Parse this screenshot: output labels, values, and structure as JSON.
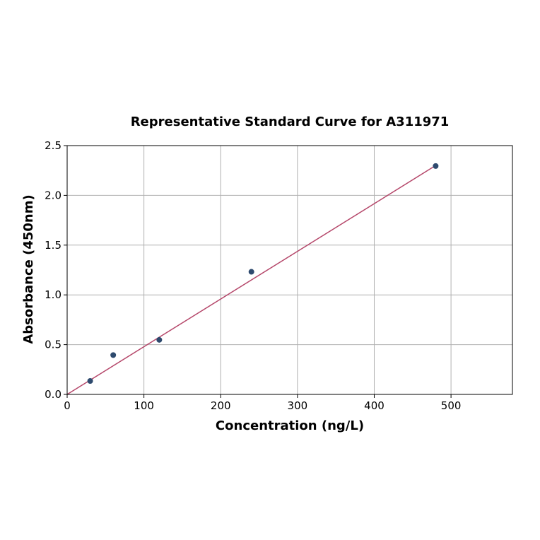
{
  "chart_data": {
    "type": "scatter",
    "title": "Representative Standard Curve for A311971",
    "xlabel": "Concentration (ng/L)",
    "ylabel": "Absorbance (450nm)",
    "xlim": [
      0,
      580
    ],
    "ylim": [
      0,
      2.5
    ],
    "xticks": [
      0,
      100,
      200,
      300,
      400,
      500
    ],
    "yticks": [
      0.0,
      0.5,
      1.0,
      1.5,
      2.0,
      2.5
    ],
    "xtick_labels": [
      "0",
      "100",
      "200",
      "300",
      "400",
      "500"
    ],
    "ytick_labels": [
      "0.0",
      "0.5",
      "1.0",
      "1.5",
      "2.0",
      "2.5"
    ],
    "grid": true,
    "series": [
      {
        "x": [
          30,
          60,
          120,
          240,
          480
        ],
        "y": [
          0.135,
          0.395,
          0.548,
          1.232,
          2.295
        ],
        "color": "#2e4a6e"
      }
    ],
    "fit_line": {
      "x": [
        0,
        480
      ],
      "y": [
        0.0,
        2.3
      ],
      "color": "#b5476a"
    }
  }
}
